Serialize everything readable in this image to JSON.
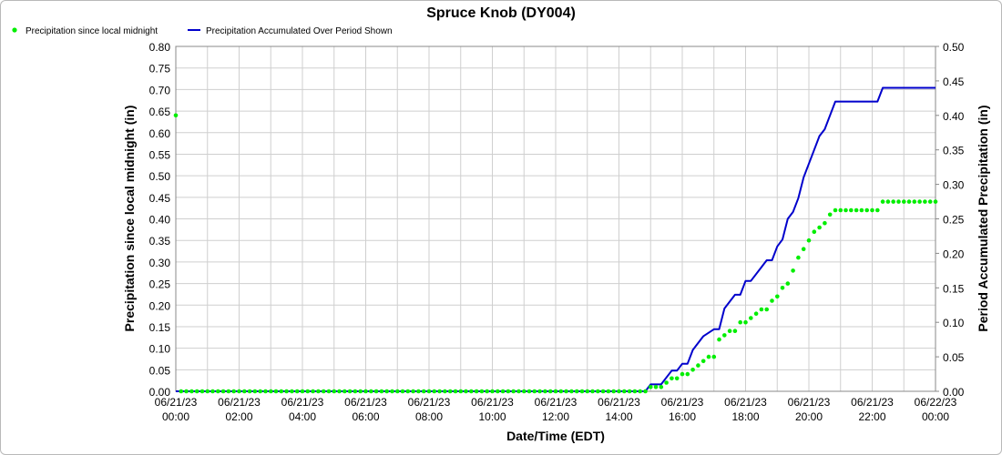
{
  "chart_data": {
    "type": "line",
    "title": "Spruce Knob (DY004)",
    "xlabel": "Date/Time (EDT)",
    "ylabel_left": "Precipitation since local midnight (in)",
    "ylabel_right": "Period Accumulated Precipitation (in)",
    "xlim": [
      "06/21/23 00:00",
      "06/22/23 00:00"
    ],
    "ylim_left": [
      0,
      0.8
    ],
    "ylim_right": [
      0,
      0.5
    ],
    "grid": true,
    "legend_position": "top-left",
    "x_ticks": [
      [
        "06/21/23",
        "00:00"
      ],
      [
        "06/21/23",
        "02:00"
      ],
      [
        "06/21/23",
        "04:00"
      ],
      [
        "06/21/23",
        "06:00"
      ],
      [
        "06/21/23",
        "08:00"
      ],
      [
        "06/21/23",
        "10:00"
      ],
      [
        "06/21/23",
        "12:00"
      ],
      [
        "06/21/23",
        "14:00"
      ],
      [
        "06/21/23",
        "16:00"
      ],
      [
        "06/21/23",
        "18:00"
      ],
      [
        "06/21/23",
        "20:00"
      ],
      [
        "06/21/23",
        "22:00"
      ],
      [
        "06/22/23",
        "00:00"
      ]
    ],
    "left_ticks": [
      "0.00",
      "0.05",
      "0.10",
      "0.15",
      "0.20",
      "0.25",
      "0.30",
      "0.35",
      "0.40",
      "0.45",
      "0.50",
      "0.55",
      "0.60",
      "0.65",
      "0.70",
      "0.75",
      "0.80"
    ],
    "right_ticks": [
      "0.00",
      "0.05",
      "0.10",
      "0.15",
      "0.20",
      "0.25",
      "0.30",
      "0.35",
      "0.40",
      "0.45",
      "0.50"
    ],
    "series": [
      {
        "name": "Precipitation since local midnight",
        "axis": "left",
        "style": "dots",
        "color": "#00ee00",
        "points": [
          [
            "00:00",
            0.64
          ],
          [
            "15:00",
            0.01
          ],
          [
            "15:10",
            0.01
          ],
          [
            "15:20",
            0.01
          ],
          [
            "15:30",
            0.02
          ],
          [
            "15:40",
            0.03
          ],
          [
            "15:50",
            0.03
          ],
          [
            "16:00",
            0.04
          ],
          [
            "16:10",
            0.04
          ],
          [
            "16:20",
            0.05
          ],
          [
            "16:30",
            0.06
          ],
          [
            "16:40",
            0.07
          ],
          [
            "16:50",
            0.08
          ],
          [
            "17:00",
            0.08
          ],
          [
            "17:10",
            0.12
          ],
          [
            "17:20",
            0.13
          ],
          [
            "17:30",
            0.14
          ],
          [
            "17:40",
            0.14
          ],
          [
            "17:50",
            0.16
          ],
          [
            "18:00",
            0.16
          ],
          [
            "18:10",
            0.17
          ],
          [
            "18:20",
            0.18
          ],
          [
            "18:30",
            0.19
          ],
          [
            "18:40",
            0.19
          ],
          [
            "18:50",
            0.21
          ],
          [
            "19:00",
            0.22
          ],
          [
            "19:10",
            0.24
          ],
          [
            "19:20",
            0.25
          ],
          [
            "19:30",
            0.28
          ],
          [
            "19:40",
            0.31
          ],
          [
            "19:50",
            0.33
          ],
          [
            "20:00",
            0.35
          ],
          [
            "20:10",
            0.37
          ],
          [
            "20:20",
            0.38
          ],
          [
            "20:30",
            0.39
          ],
          [
            "20:40",
            0.41
          ],
          [
            "20:50",
            0.42
          ],
          [
            "21:00",
            0.42
          ],
          [
            "21:10",
            0.42
          ],
          [
            "21:20",
            0.42
          ],
          [
            "21:30",
            0.42
          ],
          [
            "21:40",
            0.42
          ],
          [
            "21:50",
            0.42
          ],
          [
            "22:00",
            0.42
          ],
          [
            "22:10",
            0.42
          ],
          [
            "22:20",
            0.44
          ],
          [
            "22:30",
            0.44
          ],
          [
            "22:40",
            0.44
          ],
          [
            "22:50",
            0.44
          ],
          [
            "23:00",
            0.44
          ],
          [
            "23:10",
            0.44
          ],
          [
            "23:20",
            0.44
          ],
          [
            "23:30",
            0.44
          ],
          [
            "23:40",
            0.44
          ],
          [
            "23:50",
            0.44
          ],
          [
            "24:00",
            0.44
          ]
        ]
      },
      {
        "name": "Precipitation Accumulated Over Period Shown",
        "axis": "right",
        "style": "line",
        "color": "#0000cc",
        "points": [
          [
            "00:00",
            0.0
          ],
          [
            "14:50",
            0.0
          ],
          [
            "15:00",
            0.01
          ],
          [
            "15:20",
            0.01
          ],
          [
            "15:30",
            0.02
          ],
          [
            "15:40",
            0.03
          ],
          [
            "15:50",
            0.03
          ],
          [
            "16:00",
            0.04
          ],
          [
            "16:10",
            0.04
          ],
          [
            "16:20",
            0.06
          ],
          [
            "16:40",
            0.08
          ],
          [
            "17:00",
            0.09
          ],
          [
            "17:10",
            0.09
          ],
          [
            "17:20",
            0.12
          ],
          [
            "17:40",
            0.14
          ],
          [
            "17:50",
            0.14
          ],
          [
            "18:00",
            0.16
          ],
          [
            "18:10",
            0.16
          ],
          [
            "18:30",
            0.18
          ],
          [
            "18:40",
            0.19
          ],
          [
            "18:50",
            0.19
          ],
          [
            "19:00",
            0.21
          ],
          [
            "19:10",
            0.22
          ],
          [
            "19:20",
            0.25
          ],
          [
            "19:30",
            0.26
          ],
          [
            "19:40",
            0.28
          ],
          [
            "19:50",
            0.31
          ],
          [
            "20:10",
            0.35
          ],
          [
            "20:20",
            0.37
          ],
          [
            "20:30",
            0.38
          ],
          [
            "20:40",
            0.4
          ],
          [
            "20:50",
            0.42
          ],
          [
            "21:00",
            0.42
          ],
          [
            "21:20",
            0.42
          ],
          [
            "21:40",
            0.42
          ],
          [
            "22:00",
            0.42
          ],
          [
            "22:10",
            0.42
          ],
          [
            "22:20",
            0.44
          ],
          [
            "22:30",
            0.44
          ],
          [
            "23:00",
            0.44
          ],
          [
            "23:30",
            0.44
          ],
          [
            "24:00",
            0.44
          ]
        ]
      }
    ]
  }
}
